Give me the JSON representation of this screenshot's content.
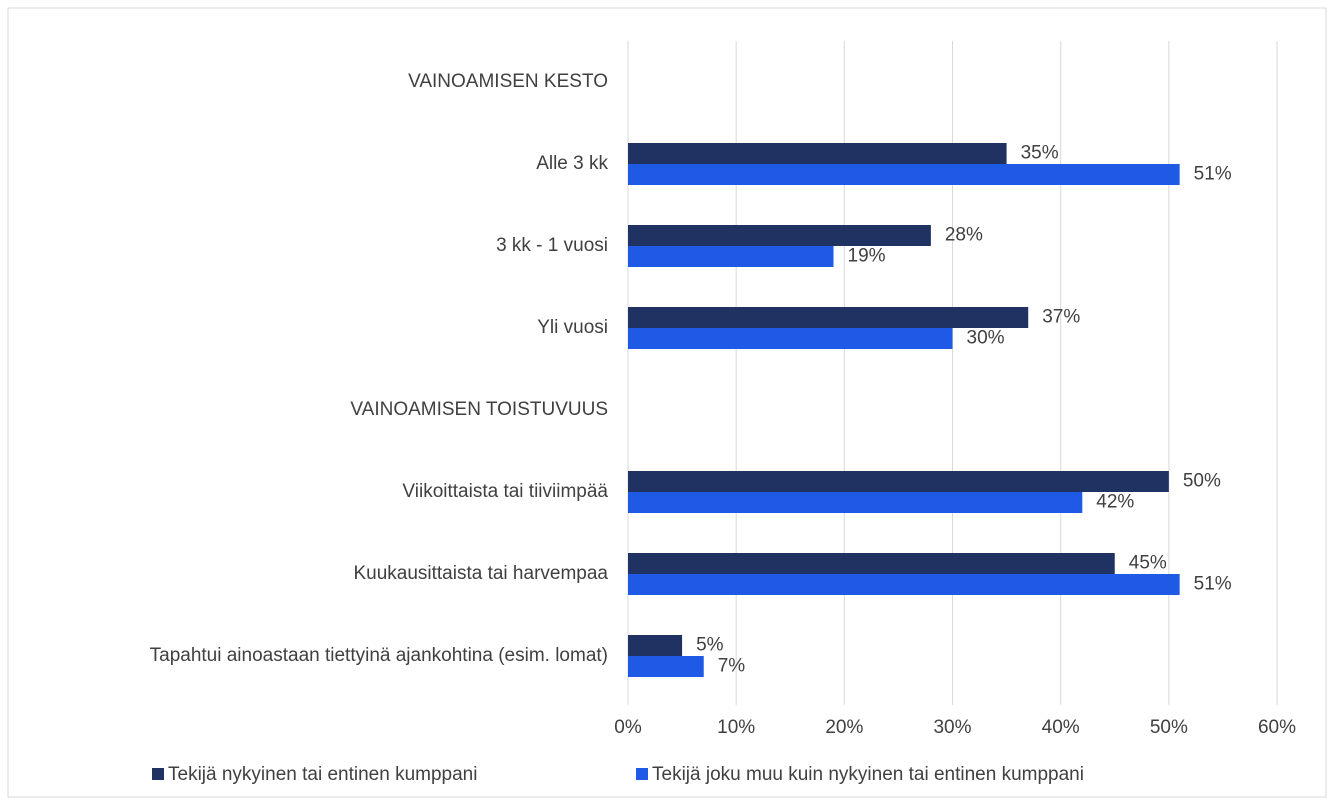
{
  "chart_data": {
    "type": "bar",
    "orientation": "horizontal",
    "categories": [
      "VAINOAMISEN KESTO",
      "Alle 3 kk",
      "3 kk - 1 vuosi",
      "Yli vuosi",
      "VAINOAMISEN TOISTUVUUS",
      "Viikoittaista tai tiiviimpää",
      "Kuukausittaista tai harvempaa",
      "Tapahtui ainoastaan tiettyinä ajankohtina (esim. lomat)"
    ],
    "series": [
      {
        "name": "Tekijä nykyinen tai entinen kumppani",
        "color": "#1f3262",
        "values": [
          null,
          35,
          28,
          37,
          null,
          50,
          45,
          5
        ],
        "value_labels": [
          null,
          "35%",
          "28%",
          "37%",
          null,
          "50%",
          "45%",
          "5%"
        ]
      },
      {
        "name": "Tekijä joku muu kuin nykyinen tai entinen kumppani",
        "color": "#1e5ae6",
        "values": [
          null,
          51,
          19,
          30,
          null,
          42,
          51,
          7
        ],
        "value_labels": [
          null,
          "51%",
          "19%",
          "30%",
          null,
          "42%",
          "51%",
          "7%"
        ]
      }
    ],
    "xlim": [
      0,
      60
    ],
    "xticks": [
      {
        "value": 0,
        "label": "0%"
      },
      {
        "value": 10,
        "label": "10%"
      },
      {
        "value": 20,
        "label": "20%"
      },
      {
        "value": 30,
        "label": "30%"
      },
      {
        "value": 40,
        "label": "40%"
      },
      {
        "value": 50,
        "label": "50%"
      },
      {
        "value": 60,
        "label": "60%"
      }
    ],
    "grid": true,
    "legend": "bottom"
  }
}
